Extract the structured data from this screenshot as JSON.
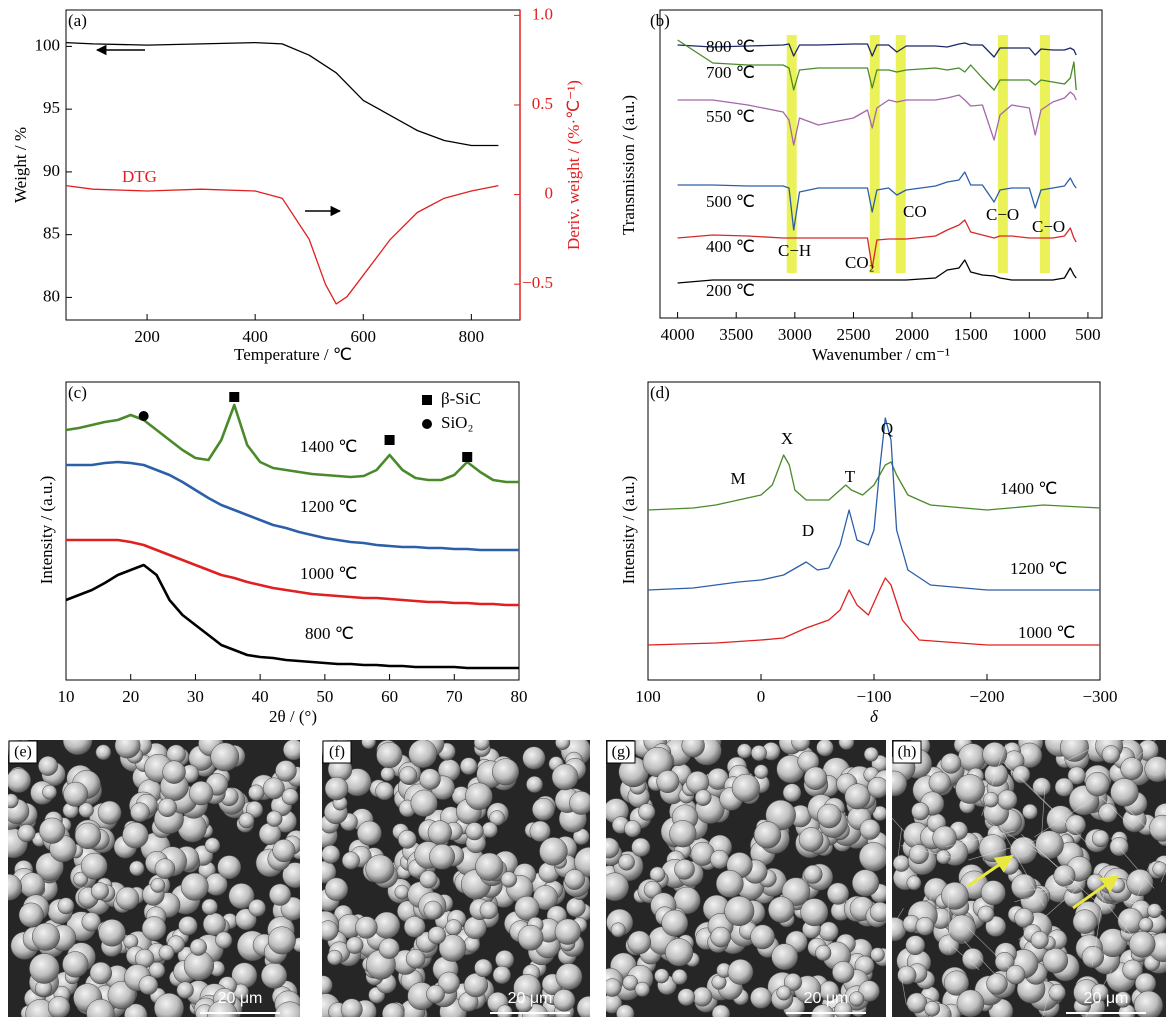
{
  "chart_data": [
    {
      "type": "line",
      "panel_label": "(a)",
      "x_label": "Temperature / ℃",
      "y_label": "Weight / %",
      "y2_label": "Deriv. weight / (%·℃⁻¹)",
      "xlim": [
        50,
        890
      ],
      "ylim": [
        78.2,
        102.9
      ],
      "y2lim": [
        -0.7,
        1.03
      ],
      "xticks": [
        200,
        400,
        600,
        800
      ],
      "yticks": [
        80,
        85,
        90,
        95,
        100
      ],
      "y2ticks": [
        {
          "value": -0.5,
          "label": "−0.5"
        },
        0,
        0.5,
        {
          "value": 1,
          "label": "1.0"
        }
      ],
      "y2_color": "#e02020",
      "series": [
        {
          "color": "#000000",
          "x": [
            50,
            100,
            200,
            300,
            400,
            450,
            500,
            550,
            600,
            650,
            700,
            750,
            800,
            850
          ],
          "values": [
            100.3,
            100.2,
            100.1,
            100.2,
            100.3,
            100.2,
            99.3,
            97.9,
            95.7,
            94.5,
            93.3,
            92.5,
            92.1,
            92.1
          ]
        },
        {
          "name": "DTG",
          "axis": "y2",
          "color": "#e02020",
          "x": [
            50,
            100,
            200,
            300,
            400,
            450,
            500,
            530,
            550,
            570,
            600,
            650,
            700,
            750,
            800,
            850
          ],
          "values": [
            0.05,
            0.03,
            0.02,
            0.03,
            0.02,
            -0.02,
            -0.25,
            -0.5,
            -0.61,
            -0.57,
            -0.45,
            -0.25,
            -0.1,
            -0.02,
            0.02,
            0.05
          ]
        }
      ]
    },
    {
      "type": "line",
      "panel_label": "(b)",
      "x_label": "Wavenumber / cm⁻¹",
      "y_label": "Transmission / (a.u.)",
      "xlim": [
        4150,
        380
      ],
      "ylim": [
        0,
        308
      ],
      "xticks": [
        4000,
        3500,
        3000,
        2500,
        2000,
        1500,
        1000,
        500
      ],
      "highlights": [
        [
          3069,
          2984
        ],
        [
          2361,
          2276
        ],
        [
          2139,
          2054
        ],
        [
          1268,
          1183
        ],
        [
          910,
          824
        ]
      ],
      "highlight_color": "#e6ef3c",
      "annotations": [
        "C−H",
        "CO₂",
        "CO",
        "C−O",
        "C−O"
      ],
      "x": [
        4000,
        3700,
        3400,
        3100,
        3050,
        3010,
        2960,
        2800,
        2500,
        2380,
        2340,
        2300,
        2200,
        2130,
        2050,
        1800,
        1700,
        1600,
        1550,
        1500,
        1400,
        1300,
        1250,
        1150,
        1000,
        950,
        900,
        800,
        700,
        650,
        620,
        600
      ],
      "series": [
        {
          "name": "800 ℃",
          "color": "#1c2866",
          "values": [
            273,
            271,
            272,
            273,
            274,
            262,
            273,
            273,
            274,
            274,
            262,
            273,
            273,
            266,
            272,
            272,
            271,
            274,
            275,
            273,
            273,
            261,
            270,
            270,
            270,
            263,
            269,
            268,
            268,
            270,
            268,
            263
          ]
        },
        {
          "name": "700 ℃",
          "color": "#4a8a2a",
          "values": [
            278,
            255,
            253,
            253,
            250,
            228,
            248,
            250,
            250,
            250,
            230,
            248,
            248,
            246,
            248,
            250,
            248,
            250,
            246,
            253,
            240,
            228,
            238,
            238,
            238,
            233,
            238,
            236,
            234,
            240,
            256,
            228
          ]
        },
        {
          "name": "550 ℃",
          "color": "#a468aa",
          "values": [
            218,
            218,
            213,
            206,
            198,
            173,
            200,
            193,
            200,
            208,
            190,
            210,
            218,
            216,
            218,
            218,
            220,
            223,
            218,
            212,
            213,
            178,
            203,
            213,
            210,
            183,
            208,
            216,
            220,
            226,
            223,
            218
          ]
        },
        {
          "name": "500 ℃",
          "color": "#2c5fa8",
          "values": [
            133,
            133,
            132,
            132,
            130,
            88,
            126,
            130,
            130,
            130,
            106,
            128,
            130,
            123,
            128,
            132,
            136,
            138,
            146,
            133,
            133,
            116,
            128,
            130,
            130,
            110,
            128,
            130,
            132,
            140,
            133,
            130
          ]
        },
        {
          "name": "400 ℃",
          "color": "#d42a2a",
          "values": [
            80,
            83,
            82,
            80,
            80,
            80,
            80,
            80,
            80,
            80,
            50,
            78,
            79,
            79,
            79,
            82,
            88,
            93,
            98,
            86,
            83,
            80,
            82,
            82,
            80,
            80,
            80,
            80,
            82,
            90,
            80,
            76
          ]
        },
        {
          "name": "200 ℃",
          "color": "#000000",
          "values": [
            35,
            38,
            38,
            38,
            38,
            38,
            38,
            38,
            38,
            38,
            38,
            38,
            38,
            38,
            38,
            40,
            48,
            50,
            58,
            46,
            43,
            42,
            40,
            38,
            38,
            38,
            38,
            38,
            40,
            50,
            43,
            40
          ]
        }
      ]
    },
    {
      "type": "line",
      "panel_label": "(c)",
      "x_label": "2θ / (°)",
      "y_label": "Intensity / (a.u.)",
      "xlim": [
        10,
        80
      ],
      "ylim": [
        0,
        298
      ],
      "xticks": [
        10,
        20,
        30,
        40,
        50,
        60,
        70,
        80
      ],
      "x": [
        10,
        12,
        14,
        16,
        18,
        20,
        22,
        24,
        26,
        28,
        30,
        32,
        34,
        36,
        38,
        40,
        42,
        44,
        46,
        48,
        50,
        52,
        54,
        56,
        58,
        60,
        62,
        64,
        66,
        68,
        70,
        72,
        74,
        76,
        78,
        80
      ],
      "series": [
        {
          "name": "1400 ℃",
          "color": "#4a8a2a",
          "values": [
            250,
            252,
            255,
            258,
            260,
            265,
            260,
            250,
            240,
            230,
            222,
            220,
            240,
            275,
            235,
            218,
            212,
            210,
            208,
            206,
            205,
            204,
            203,
            204,
            210,
            225,
            210,
            202,
            200,
            200,
            205,
            218,
            208,
            200,
            198,
            198
          ]
        },
        {
          "name": "1200 ℃",
          "color": "#2c5fa8",
          "values": [
            215,
            215,
            215,
            217,
            218,
            217,
            215,
            210,
            205,
            198,
            190,
            182,
            175,
            170,
            165,
            160,
            155,
            152,
            148,
            145,
            142,
            140,
            138,
            137,
            135,
            134,
            133,
            133,
            132,
            132,
            131,
            131,
            130,
            130,
            130,
            130
          ]
        },
        {
          "name": "1000 ℃",
          "color": "#e02020",
          "values": [
            140,
            140,
            140,
            140,
            140,
            138,
            135,
            130,
            125,
            120,
            115,
            110,
            105,
            102,
            98,
            95,
            92,
            90,
            88,
            86,
            85,
            84,
            83,
            82,
            82,
            81,
            80,
            79,
            78,
            78,
            77,
            77,
            76,
            76,
            75,
            75
          ]
        },
        {
          "name": "800 ℃",
          "color": "#000000",
          "values": [
            80,
            85,
            90,
            97,
            105,
            110,
            115,
            105,
            80,
            65,
            55,
            45,
            35,
            30,
            25,
            23,
            22,
            20,
            19,
            18,
            17,
            16,
            16,
            15,
            15,
            14,
            14,
            13,
            13,
            13,
            13,
            12,
            12,
            12,
            12,
            12
          ]
        }
      ],
      "markers": [
        {
          "label": "β-SiC",
          "shape": "square",
          "points": [
            [
              36,
              283
            ],
            [
              60,
              240
            ],
            [
              72,
              223
            ]
          ]
        },
        {
          "label": "SiO₂",
          "shape": "circle",
          "points": [
            [
              22,
              264
            ]
          ]
        }
      ]
    },
    {
      "type": "line",
      "panel_label": "(d)",
      "x_label": "δ",
      "y_label": "Intensity / (a.u.)",
      "xlim": [
        100,
        -300
      ],
      "ylim": [
        0,
        298
      ],
      "xticks": [
        100,
        0,
        {
          "value": -100,
          "label": "−100"
        },
        {
          "value": -200,
          "label": "−200"
        },
        {
          "value": -300,
          "label": "−300"
        }
      ],
      "annotations": [
        "M",
        "X",
        "T",
        "D",
        "Q"
      ],
      "series": [
        {
          "name": "1400 ℃",
          "color": "#4a8a2a",
          "x": [
            100,
            60,
            40,
            20,
            0,
            -10,
            -15,
            -20,
            -25,
            -30,
            -40,
            -60,
            -75,
            -80,
            -90,
            -100,
            -110,
            -115,
            -120,
            -130,
            -150,
            -200,
            -250,
            -300
          ],
          "values": [
            170,
            172,
            175,
            180,
            185,
            195,
            210,
            225,
            215,
            190,
            180,
            180,
            195,
            190,
            185,
            195,
            215,
            218,
            205,
            185,
            175,
            170,
            175,
            172
          ]
        },
        {
          "name": "1200 ℃",
          "color": "#2c5fa8",
          "x": [
            100,
            60,
            40,
            20,
            0,
            -20,
            -40,
            -50,
            -60,
            -70,
            -78,
            -85,
            -95,
            -100,
            -105,
            -110,
            -115,
            -120,
            -130,
            -150,
            -200,
            -300
          ],
          "values": [
            90,
            92,
            95,
            98,
            100,
            105,
            118,
            110,
            112,
            135,
            170,
            140,
            135,
            150,
            210,
            262,
            240,
            150,
            110,
            95,
            90,
            90
          ]
        },
        {
          "name": "1000 ℃",
          "color": "#e02020",
          "x": [
            100,
            40,
            0,
            -20,
            -40,
            -60,
            -70,
            -78,
            -85,
            -95,
            -105,
            -110,
            -115,
            -125,
            -140,
            -200,
            -300
          ],
          "values": [
            35,
            37,
            40,
            42,
            52,
            60,
            70,
            90,
            75,
            65,
            90,
            102,
            95,
            60,
            40,
            35,
            35
          ]
        }
      ]
    }
  ],
  "images": [
    {
      "panel_label": "(e)",
      "scale_bar": "20 μm"
    },
    {
      "panel_label": "(f)",
      "scale_bar": "20 μm"
    },
    {
      "panel_label": "(g)",
      "scale_bar": "20 μm"
    },
    {
      "panel_label": "(h)",
      "scale_bar": "20 μm"
    }
  ]
}
